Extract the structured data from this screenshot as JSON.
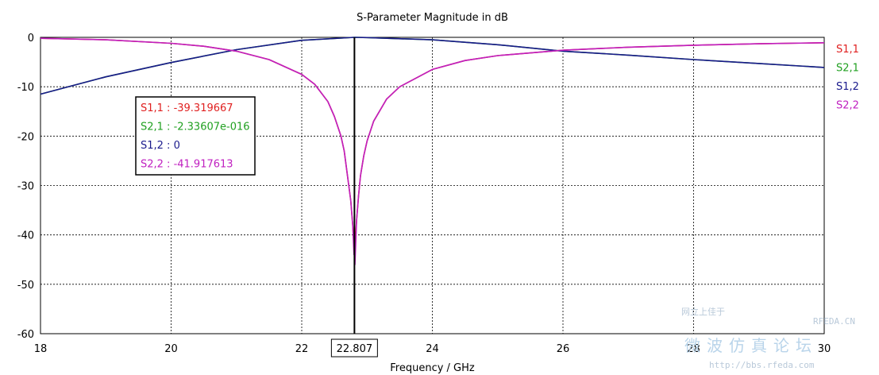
{
  "chart_data": {
    "type": "line",
    "title": "S-Parameter Magnitude in dB",
    "xlabel": "Frequency / GHz",
    "ylabel": "",
    "xlim": [
      18,
      30
    ],
    "ylim": [
      -60,
      0
    ],
    "x_ticks": [
      "18",
      "20",
      "22",
      "24",
      "26",
      "28",
      "30"
    ],
    "y_ticks": [
      "0",
      "-10",
      "-20",
      "-30",
      "-40",
      "-50",
      "-60"
    ],
    "grid": true,
    "legend_position": "right",
    "series": [
      {
        "name": "S1,1",
        "color": "#e02020",
        "x": [
          18,
          19,
          20,
          20.5,
          21,
          21.5,
          22,
          22.2,
          22.4,
          22.5,
          22.6,
          22.65,
          22.7,
          22.75,
          22.78,
          22.8,
          22.807,
          22.815,
          22.84,
          22.87,
          22.9,
          22.95,
          23,
          23.1,
          23.3,
          23.5,
          24,
          24.5,
          25,
          26,
          27,
          28,
          29,
          30
        ],
        "y": [
          -0.2,
          -0.5,
          -1.2,
          -1.8,
          -2.8,
          -4.5,
          -7.5,
          -9.5,
          -13,
          -16,
          -20,
          -23,
          -28,
          -33,
          -38,
          -42,
          -39.319667,
          -42,
          -37,
          -32,
          -28,
          -24,
          -21,
          -17,
          -12.5,
          -10,
          -6.5,
          -4.7,
          -3.7,
          -2.6,
          -2.0,
          -1.6,
          -1.3,
          -1.1
        ]
      },
      {
        "name": "S2,1",
        "color": "#20a020",
        "x": [
          18,
          19,
          20,
          21,
          22,
          22.807,
          23,
          24,
          25,
          26,
          27,
          28,
          29,
          30
        ],
        "y": [
          -11.5,
          -8,
          -5.1,
          -2.5,
          -0.6,
          0,
          -0.05,
          -0.5,
          -1.5,
          -2.8,
          -3.6,
          -4.5,
          -5.3,
          -6.1
        ]
      },
      {
        "name": "S1,2",
        "color": "#1a1a8c",
        "x": [
          18,
          19,
          20,
          21,
          22,
          22.807,
          23,
          24,
          25,
          26,
          27,
          28,
          29,
          30
        ],
        "y": [
          -11.5,
          -8,
          -5.1,
          -2.5,
          -0.6,
          0,
          -0.05,
          -0.5,
          -1.5,
          -2.8,
          -3.6,
          -4.5,
          -5.3,
          -6.1
        ]
      },
      {
        "name": "S2,2",
        "color": "#c020c0",
        "x": [
          18,
          19,
          20,
          20.5,
          21,
          21.5,
          22,
          22.2,
          22.4,
          22.5,
          22.6,
          22.65,
          22.7,
          22.75,
          22.78,
          22.8,
          22.807,
          22.815,
          22.84,
          22.87,
          22.9,
          22.95,
          23,
          23.1,
          23.3,
          23.5,
          24,
          24.5,
          25,
          26,
          27,
          28,
          29,
          30
        ],
        "y": [
          -0.2,
          -0.5,
          -1.2,
          -1.8,
          -2.8,
          -4.5,
          -7.5,
          -9.5,
          -13,
          -16,
          -20,
          -23,
          -28,
          -33,
          -38,
          -44,
          -41.917613,
          -46,
          -37,
          -32,
          -28,
          -24,
          -21,
          -17,
          -12.5,
          -10,
          -6.5,
          -4.7,
          -3.7,
          -2.6,
          -2.0,
          -1.6,
          -1.3,
          -1.1
        ]
      }
    ],
    "marker": {
      "x": 22.807,
      "x_label": "22.807",
      "readouts": [
        {
          "text": "S1,1 : -39.319667",
          "color": "#e02020"
        },
        {
          "text": "S2,1 : -2.33607e-016",
          "color": "#20a020"
        },
        {
          "text": "S1,2 : 0",
          "color": "#1a1a8c"
        },
        {
          "text": "S2,2 : -41.917613",
          "color": "#c020c0"
        }
      ]
    },
    "legend": [
      {
        "label": "S1,1",
        "color": "#e02020"
      },
      {
        "label": "S2,1",
        "color": "#20a020"
      },
      {
        "label": "S1,2",
        "color": "#1a1a8c"
      },
      {
        "label": "S2,2",
        "color": "#c020c0"
      }
    ]
  },
  "watermark": {
    "site": "RFEDA.CN",
    "chinese": "微波仿真论坛",
    "top_chinese": "网立上佳于",
    "url": "http://bbs.rfeda.com"
  }
}
